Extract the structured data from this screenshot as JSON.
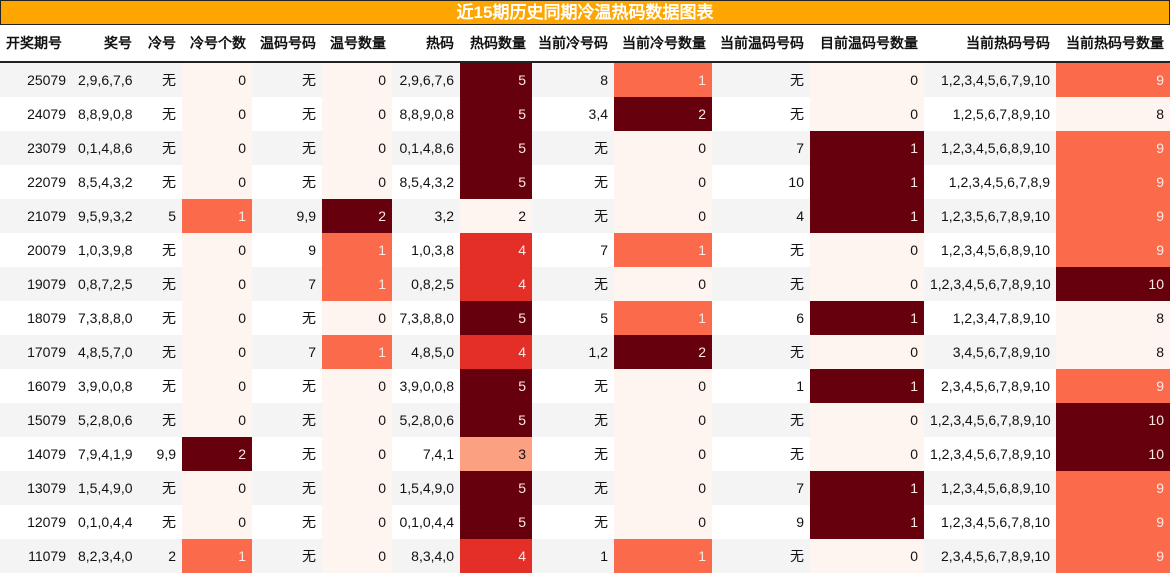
{
  "title": "近15期历史同期冷温热码数据图表",
  "headers": [
    "开奖期号",
    "奖号",
    "冷号",
    "冷号个数",
    "温码号码",
    "温号数量",
    "热码",
    "热码数量",
    "当前冷号码",
    "当前冷号数量",
    "当前温码号码",
    "目前温码号数量",
    "当前热码号码",
    "当前热码号数量"
  ],
  "heat_columns": [
    3,
    5,
    7,
    9,
    11,
    13
  ],
  "heat_colors": [
    "#fff5f0",
    "#fca082",
    "#fb6a4a",
    "#e32f27",
    "#67000d"
  ],
  "rows": [
    [
      "25079",
      "2,9,6,7,6",
      "无",
      "0",
      "无",
      "0",
      "2,9,6,7,6",
      "5",
      "8",
      "1",
      "无",
      "0",
      "1,2,3,4,5,6,7,9,10",
      "9"
    ],
    [
      "24079",
      "8,8,9,0,8",
      "无",
      "0",
      "无",
      "0",
      "8,8,9,0,8",
      "5",
      "3,4",
      "2",
      "无",
      "0",
      "1,2,5,6,7,8,9,10",
      "8"
    ],
    [
      "23079",
      "0,1,4,8,6",
      "无",
      "0",
      "无",
      "0",
      "0,1,4,8,6",
      "5",
      "无",
      "0",
      "7",
      "1",
      "1,2,3,4,5,6,8,9,10",
      "9"
    ],
    [
      "22079",
      "8,5,4,3,2",
      "无",
      "0",
      "无",
      "0",
      "8,5,4,3,2",
      "5",
      "无",
      "0",
      "10",
      "1",
      "1,2,3,4,5,6,7,8,9",
      "9"
    ],
    [
      "21079",
      "9,5,9,3,2",
      "5",
      "1",
      "9,9",
      "2",
      "3,2",
      "2",
      "无",
      "0",
      "4",
      "1",
      "1,2,3,5,6,7,8,9,10",
      "9"
    ],
    [
      "20079",
      "1,0,3,9,8",
      "无",
      "0",
      "9",
      "1",
      "1,0,3,8",
      "4",
      "7",
      "1",
      "无",
      "0",
      "1,2,3,4,5,6,8,9,10",
      "9"
    ],
    [
      "19079",
      "0,8,7,2,5",
      "无",
      "0",
      "7",
      "1",
      "0,8,2,5",
      "4",
      "无",
      "0",
      "无",
      "0",
      "1,2,3,4,5,6,7,8,9,10",
      "10"
    ],
    [
      "18079",
      "7,3,8,8,0",
      "无",
      "0",
      "无",
      "0",
      "7,3,8,8,0",
      "5",
      "5",
      "1",
      "6",
      "1",
      "1,2,3,4,7,8,9,10",
      "8"
    ],
    [
      "17079",
      "4,8,5,7,0",
      "无",
      "0",
      "7",
      "1",
      "4,8,5,0",
      "4",
      "1,2",
      "2",
      "无",
      "0",
      "3,4,5,6,7,8,9,10",
      "8"
    ],
    [
      "16079",
      "3,9,0,0,8",
      "无",
      "0",
      "无",
      "0",
      "3,9,0,0,8",
      "5",
      "无",
      "0",
      "1",
      "1",
      "2,3,4,5,6,7,8,9,10",
      "9"
    ],
    [
      "15079",
      "5,2,8,0,6",
      "无",
      "0",
      "无",
      "0",
      "5,2,8,0,6",
      "5",
      "无",
      "0",
      "无",
      "0",
      "1,2,3,4,5,6,7,8,9,10",
      "10"
    ],
    [
      "14079",
      "7,9,4,1,9",
      "9,9",
      "2",
      "无",
      "0",
      "7,4,1",
      "3",
      "无",
      "0",
      "无",
      "0",
      "1,2,3,4,5,6,7,8,9,10",
      "10"
    ],
    [
      "13079",
      "1,5,4,9,0",
      "无",
      "0",
      "无",
      "0",
      "1,5,4,9,0",
      "5",
      "无",
      "0",
      "7",
      "1",
      "1,2,3,4,5,6,8,9,10",
      "9"
    ],
    [
      "12079",
      "0,1,0,4,4",
      "无",
      "0",
      "无",
      "0",
      "0,1,0,4,4",
      "5",
      "无",
      "0",
      "9",
      "1",
      "1,2,3,4,5,6,7,8,10",
      "9"
    ],
    [
      "11079",
      "8,2,3,4,0",
      "2",
      "1",
      "无",
      "0",
      "8,3,4,0",
      "4",
      "1",
      "1",
      "无",
      "0",
      "2,3,4,5,6,7,8,9,10",
      "9"
    ]
  ]
}
